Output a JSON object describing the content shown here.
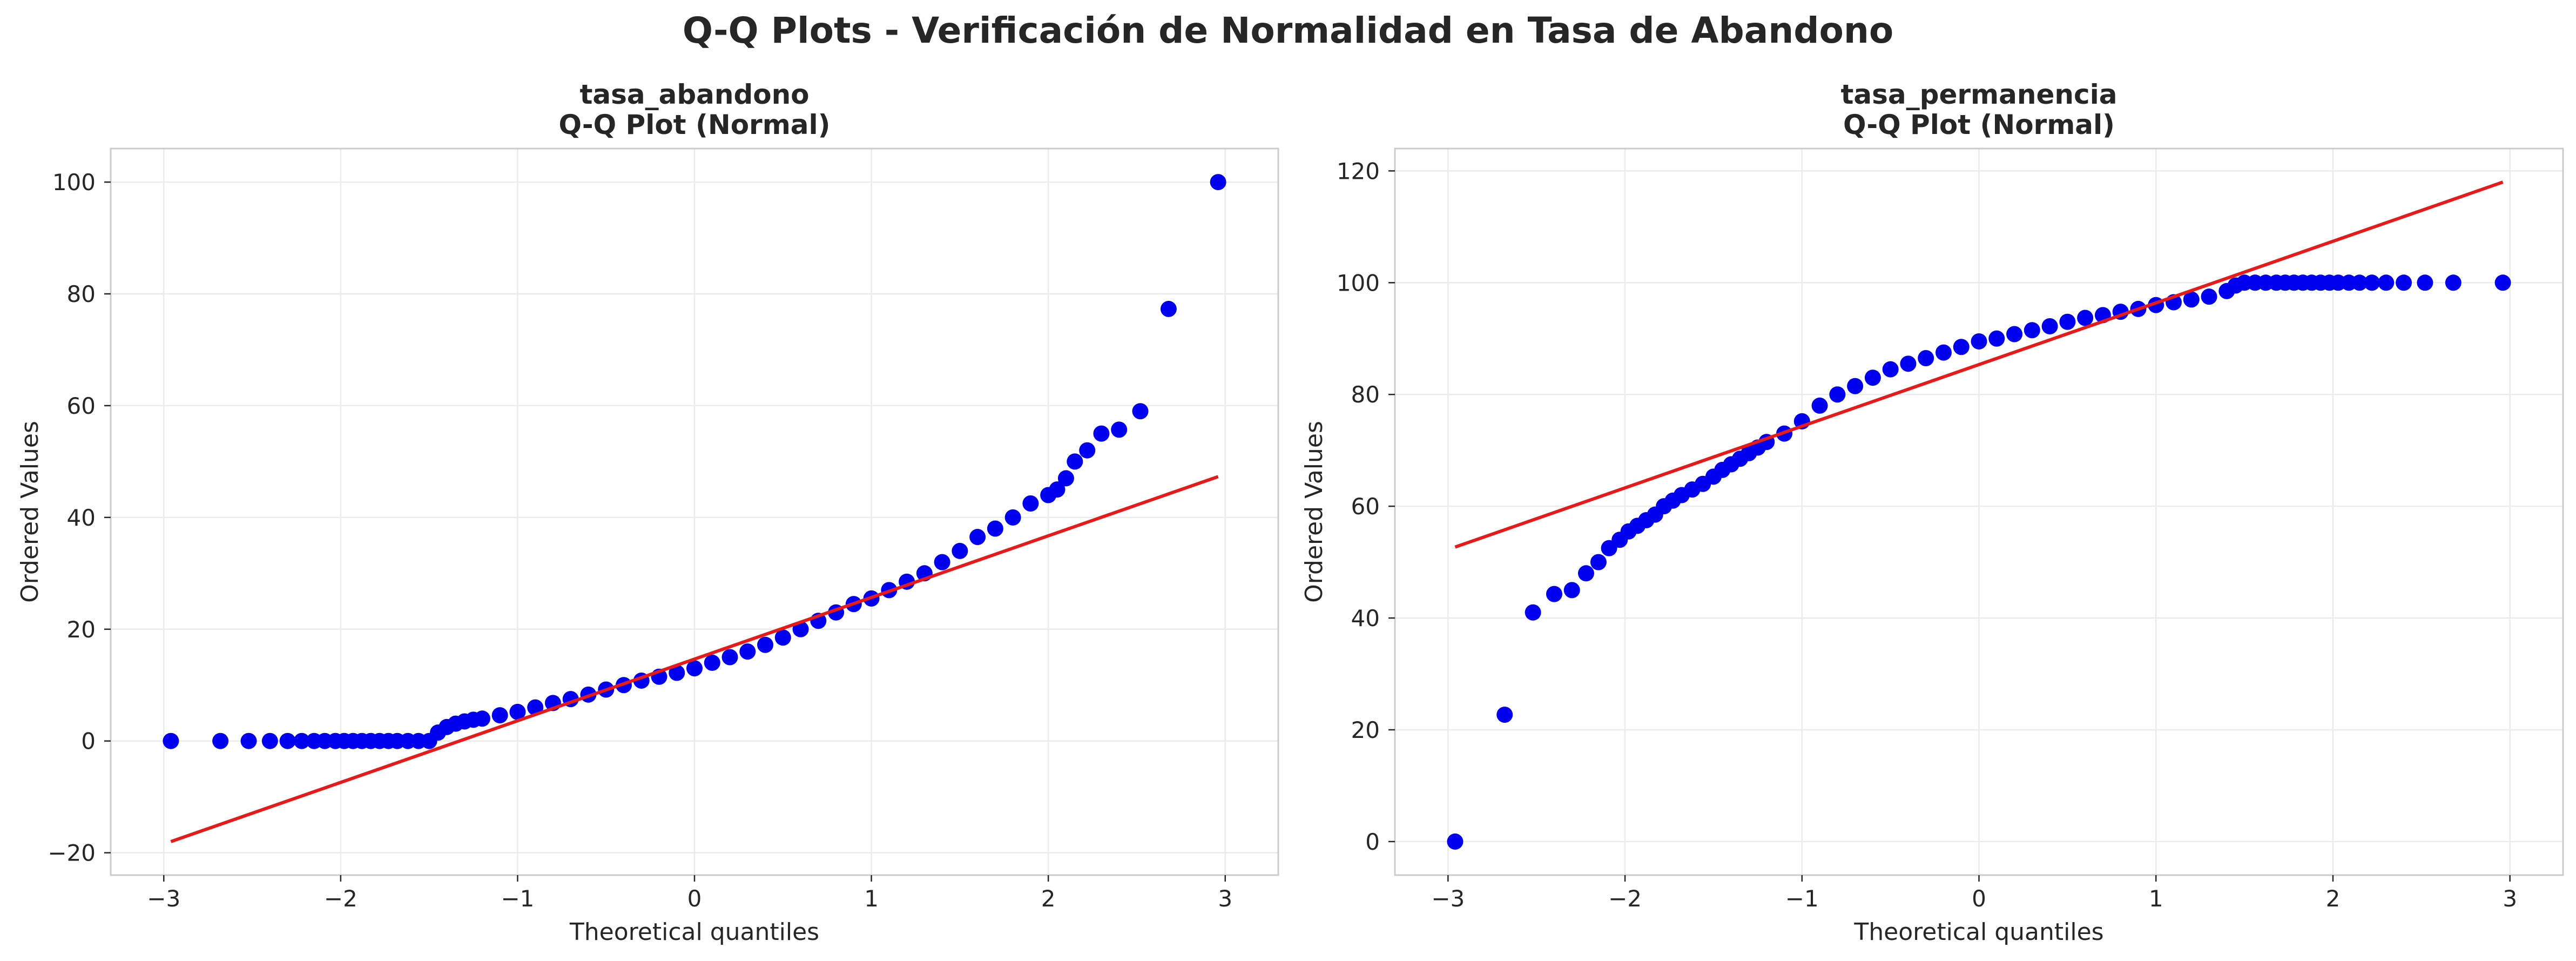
{
  "figure_title": "Q-Q Plots - Verificación de Normalidad en Tasa de Abandono",
  "colors": {
    "points": "#0000ee",
    "fit_line": "#e81919",
    "grid": "#ebebeb",
    "frame": "#cccccc"
  },
  "chart_data": [
    {
      "type": "scatter",
      "title_line1": "tasa_abandono",
      "title_line2": "Q-Q Plot (Normal)",
      "xlabel": "Theoretical quantiles",
      "ylabel": "Ordered Values",
      "xlim": [
        -3.3,
        3.3
      ],
      "ylim": [
        -24,
        106
      ],
      "xticks": [
        -3,
        -2,
        -1,
        0,
        1,
        2,
        3
      ],
      "xtick_labels": [
        "−3",
        "−2",
        "−1",
        "0",
        "1",
        "2",
        "3"
      ],
      "yticks": [
        -20,
        0,
        20,
        40,
        60,
        80,
        100
      ],
      "ytick_labels": [
        "−20",
        "0",
        "20",
        "40",
        "60",
        "80",
        "100"
      ],
      "grid": true,
      "fit_line": {
        "x": [
          -2.96,
          2.96
        ],
        "y": [
          -18,
          47.3
        ]
      },
      "series": [
        {
          "x": [
            -2.96,
            -2.68,
            -2.52,
            -2.4,
            -2.3,
            -2.22,
            -2.15,
            -2.09,
            -2.03,
            -1.98,
            -1.93,
            -1.88,
            -1.83,
            -1.78,
            -1.73,
            -1.68,
            -1.62,
            -1.56,
            -1.5,
            -1.45,
            -1.4,
            -1.35,
            -1.3,
            -1.25,
            -1.2,
            -1.1,
            -1.0,
            -0.9,
            -0.8,
            -0.7,
            -0.6,
            -0.5,
            -0.4,
            -0.3,
            -0.2,
            -0.1,
            0.0,
            0.1,
            0.2,
            0.3,
            0.4,
            0.5,
            0.6,
            0.7,
            0.8,
            0.9,
            1.0,
            1.1,
            1.2,
            1.3,
            1.4,
            1.5,
            1.6,
            1.7,
            1.8,
            1.9,
            2.0,
            2.05,
            2.1,
            2.15,
            2.22,
            2.3,
            2.4,
            2.52,
            2.68,
            2.96
          ],
          "y": [
            0,
            0,
            0,
            0,
            0,
            0,
            0,
            0,
            0,
            0,
            0,
            0,
            0,
            0,
            0,
            0,
            0,
            0,
            0,
            1.5,
            2.5,
            3.1,
            3.5,
            3.8,
            4.0,
            4.6,
            5.2,
            6.0,
            6.8,
            7.5,
            8.3,
            9.2,
            10.0,
            10.8,
            11.5,
            12.2,
            13.0,
            14.0,
            15.0,
            16.0,
            17.2,
            18.5,
            20.0,
            21.5,
            23.0,
            24.5,
            25.5,
            27.0,
            28.5,
            30.0,
            32.0,
            34.0,
            36.5,
            38.0,
            40.0,
            42.5,
            44.0,
            45.0,
            47.0,
            50.0,
            52.0,
            55.0,
            55.7,
            59.0,
            77.3,
            100.0
          ]
        }
      ]
    },
    {
      "type": "scatter",
      "title_line1": "tasa_permanencia",
      "title_line2": "Q-Q Plot (Normal)",
      "xlabel": "Theoretical quantiles",
      "ylabel": "Ordered Values",
      "xlim": [
        -3.3,
        3.3
      ],
      "ylim": [
        -6,
        124
      ],
      "xticks": [
        -3,
        -2,
        -1,
        0,
        1,
        2,
        3
      ],
      "xtick_labels": [
        "−3",
        "−2",
        "−1",
        "0",
        "1",
        "2",
        "3"
      ],
      "yticks": [
        0,
        20,
        40,
        60,
        80,
        100,
        120
      ],
      "ytick_labels": [
        "0",
        "20",
        "40",
        "60",
        "80",
        "100",
        "120"
      ],
      "grid": true,
      "fit_line": {
        "x": [
          -2.96,
          2.96
        ],
        "y": [
          52.7,
          118
        ]
      },
      "series": [
        {
          "x": [
            -2.96,
            -2.68,
            -2.52,
            -2.4,
            -2.3,
            -2.22,
            -2.15,
            -2.09,
            -2.03,
            -1.98,
            -1.93,
            -1.88,
            -1.83,
            -1.78,
            -1.73,
            -1.68,
            -1.62,
            -1.56,
            -1.5,
            -1.45,
            -1.4,
            -1.35,
            -1.3,
            -1.25,
            -1.2,
            -1.1,
            -1.0,
            -0.9,
            -0.8,
            -0.7,
            -0.6,
            -0.5,
            -0.4,
            -0.3,
            -0.2,
            -0.1,
            0.0,
            0.1,
            0.2,
            0.3,
            0.4,
            0.5,
            0.6,
            0.7,
            0.8,
            0.9,
            1.0,
            1.1,
            1.2,
            1.3,
            1.4,
            1.45,
            1.5,
            1.56,
            1.62,
            1.68,
            1.73,
            1.78,
            1.83,
            1.88,
            1.93,
            1.98,
            2.03,
            2.09,
            2.15,
            2.22,
            2.3,
            2.4,
            2.52,
            2.68,
            2.96
          ],
          "y": [
            0,
            22.7,
            41.0,
            44.3,
            45.0,
            48.0,
            50.0,
            52.5,
            54.0,
            55.5,
            56.5,
            57.5,
            58.5,
            60.0,
            61.0,
            62.0,
            63.0,
            64.0,
            65.3,
            66.5,
            67.5,
            68.5,
            69.5,
            70.5,
            71.5,
            73.0,
            75.2,
            78.0,
            80.0,
            81.5,
            83.0,
            84.5,
            85.5,
            86.5,
            87.5,
            88.5,
            89.5,
            90.0,
            90.8,
            91.5,
            92.2,
            93.0,
            93.7,
            94.2,
            94.8,
            95.3,
            96.0,
            96.5,
            97.0,
            97.5,
            98.5,
            99.5,
            100,
            100,
            100,
            100,
            100,
            100,
            100,
            100,
            100,
            100,
            100,
            100,
            100,
            100,
            100,
            100,
            100,
            100,
            100
          ]
        }
      ]
    }
  ]
}
